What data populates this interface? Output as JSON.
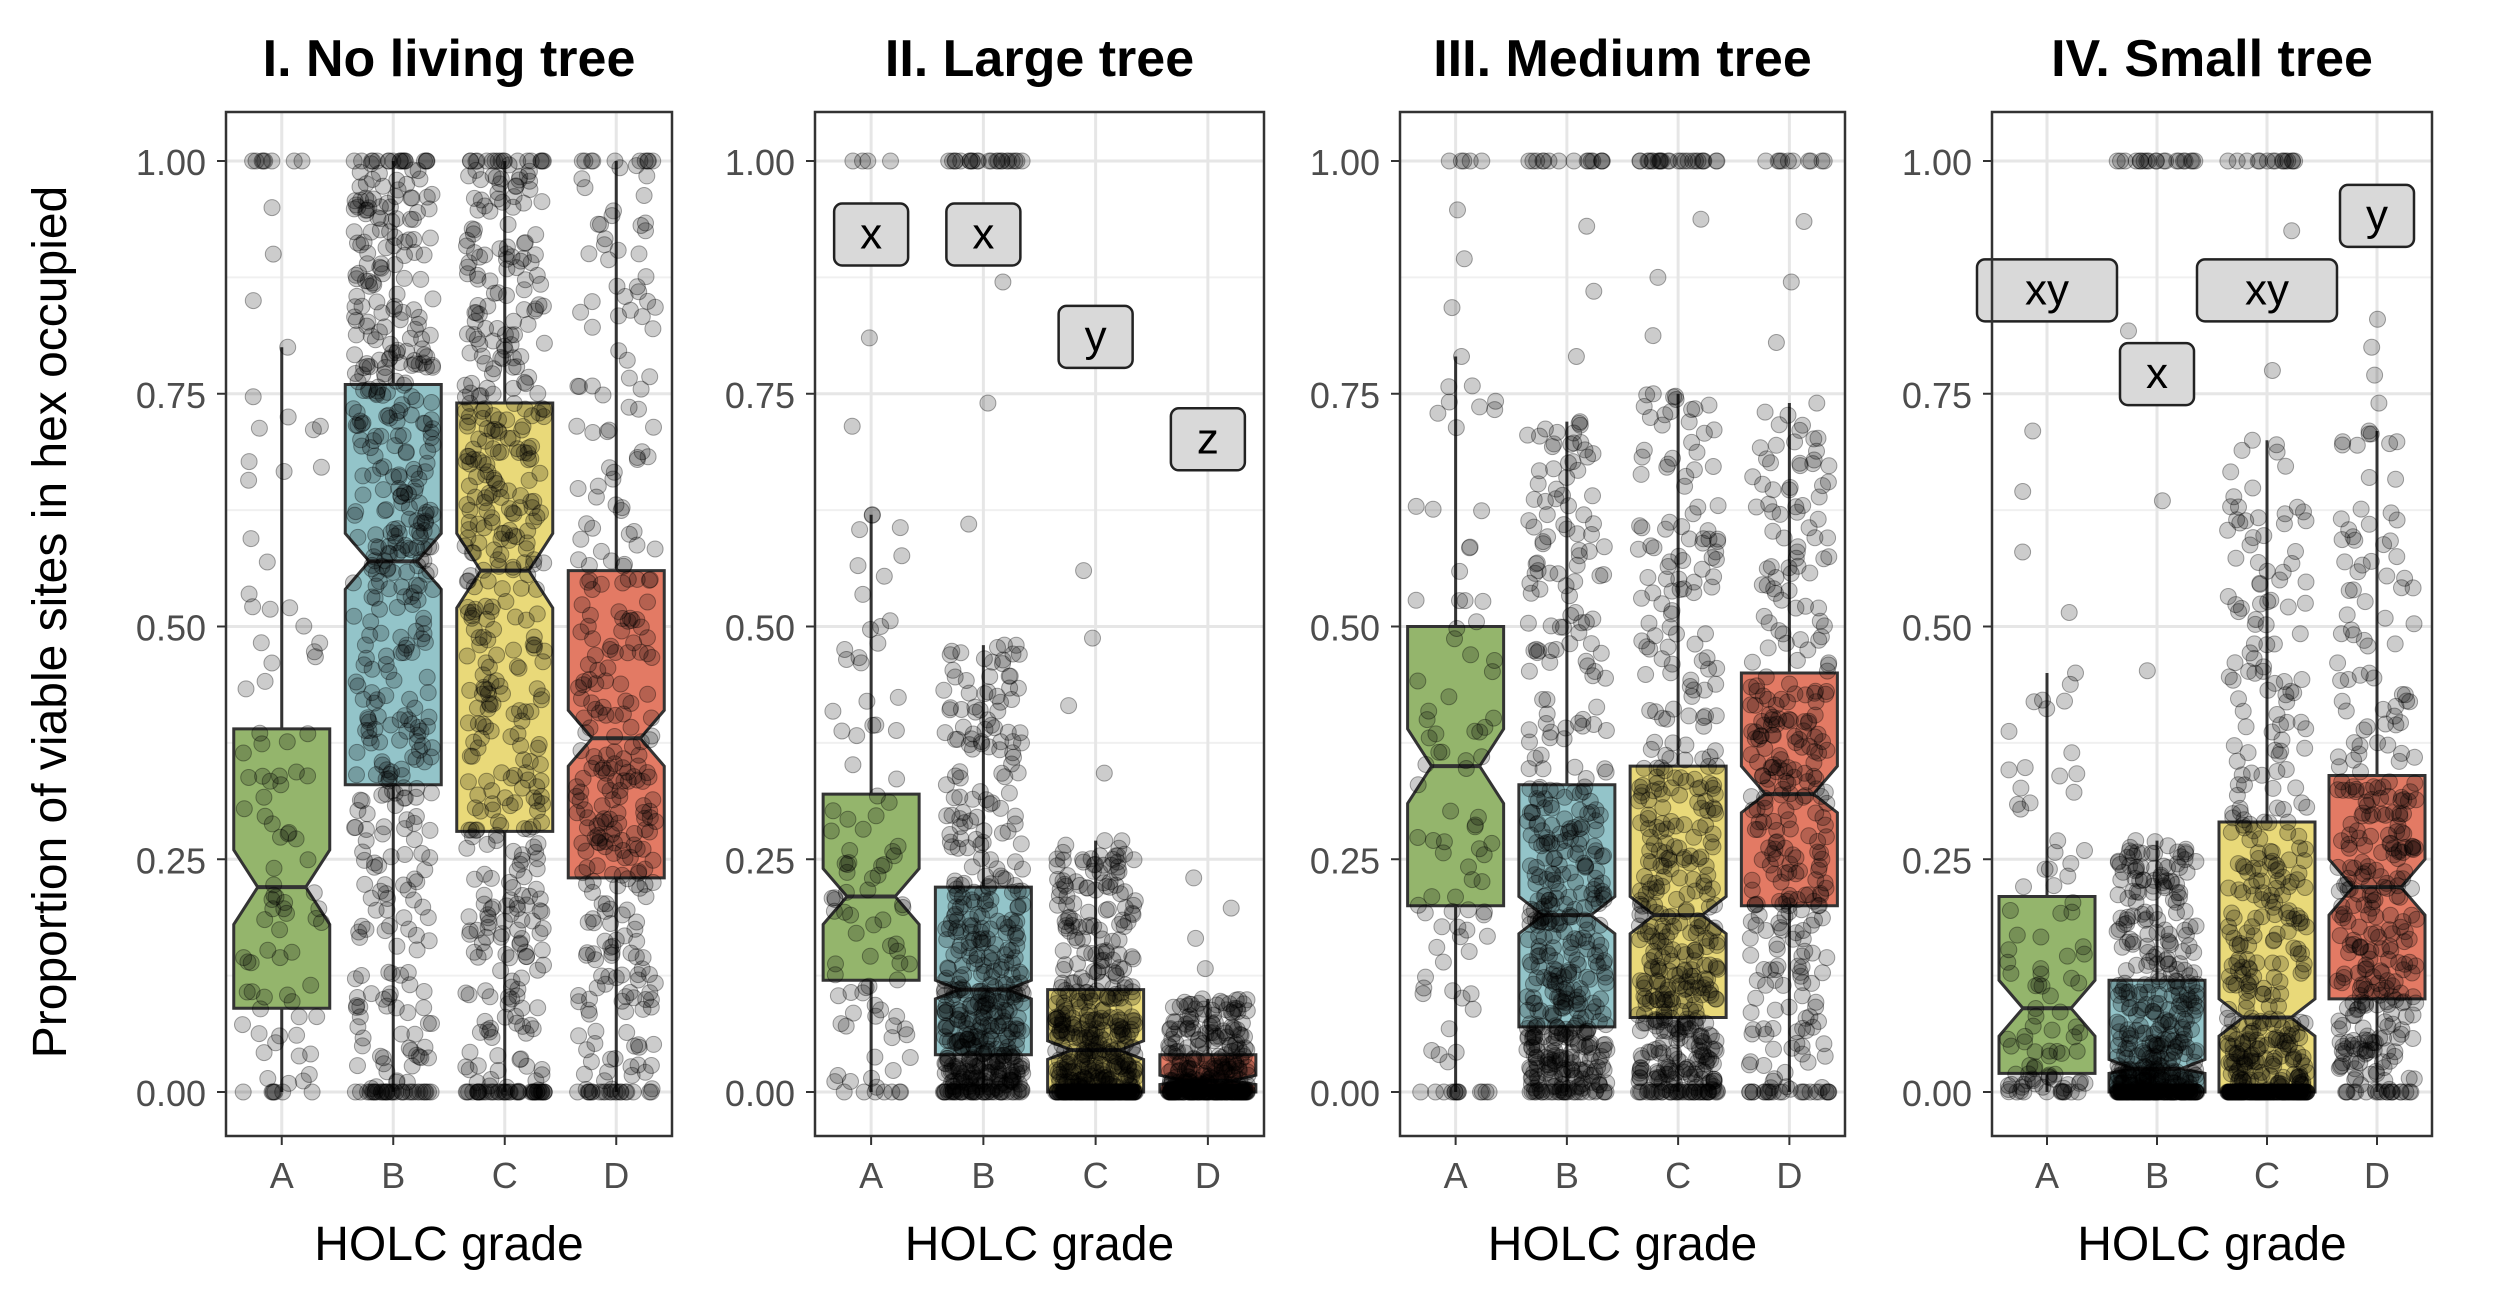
{
  "chart_data": {
    "type": "box",
    "ylabel": "Proportion of viable sites in hex occupied",
    "ylim": [
      0,
      1
    ],
    "yticks": [
      "0.00",
      "0.25",
      "0.50",
      "0.75",
      "1.00"
    ],
    "grid": true,
    "colors": {
      "A": "#94b56c",
      "B": "#93c4c9",
      "C": "#e9d979",
      "D": "#e37a64"
    },
    "panels": [
      {
        "title": "I. No living tree",
        "xlabel": "HOLC grade",
        "categories": [
          "A",
          "B",
          "C",
          "D"
        ],
        "boxes": [
          {
            "grade": "A",
            "whisker_low": 0.0,
            "q1": 0.09,
            "median": 0.22,
            "q3": 0.39,
            "whisker_high": 0.8,
            "notch_low": 0.18,
            "notch_high": 0.26,
            "max_point": 1.0
          },
          {
            "grade": "B",
            "whisker_low": 0.0,
            "q1": 0.33,
            "median": 0.57,
            "q3": 0.76,
            "whisker_high": 1.0,
            "notch_low": 0.54,
            "notch_high": 0.6,
            "max_point": 1.0
          },
          {
            "grade": "C",
            "whisker_low": 0.0,
            "q1": 0.28,
            "median": 0.56,
            "q3": 0.74,
            "whisker_high": 1.0,
            "notch_low": 0.52,
            "notch_high": 0.6,
            "max_point": 1.0
          },
          {
            "grade": "D",
            "whisker_low": 0.0,
            "q1": 0.23,
            "median": 0.38,
            "q3": 0.56,
            "whisker_high": 1.0,
            "notch_low": 0.35,
            "notch_high": 0.41,
            "max_point": 1.0
          }
        ],
        "letters": []
      },
      {
        "title": "II. Large tree",
        "xlabel": "HOLC grade",
        "categories": [
          "A",
          "B",
          "C",
          "D"
        ],
        "boxes": [
          {
            "grade": "A",
            "whisker_low": 0.0,
            "q1": 0.12,
            "median": 0.21,
            "q3": 0.32,
            "whisker_high": 0.62,
            "notch_low": 0.18,
            "notch_high": 0.24,
            "max_point": 1.0
          },
          {
            "grade": "B",
            "whisker_low": 0.0,
            "q1": 0.04,
            "median": 0.11,
            "q3": 0.22,
            "whisker_high": 0.48,
            "notch_low": 0.1,
            "notch_high": 0.12,
            "max_point": 1.0
          },
          {
            "grade": "C",
            "whisker_low": 0.0,
            "q1": 0.0,
            "median": 0.045,
            "q3": 0.11,
            "whisker_high": 0.27,
            "notch_low": 0.035,
            "notch_high": 0.055,
            "max_point": 0.56
          },
          {
            "grade": "D",
            "whisker_low": 0.0,
            "q1": 0.0,
            "median": 0.012,
            "q3": 0.04,
            "whisker_high": 0.1,
            "notch_low": 0.008,
            "notch_high": 0.018,
            "max_point": 0.23
          }
        ],
        "letters": [
          {
            "grade": "A",
            "label": "x",
            "y": 0.92
          },
          {
            "grade": "B",
            "label": "x",
            "y": 0.92
          },
          {
            "grade": "C",
            "label": "y",
            "y": 0.81
          },
          {
            "grade": "D",
            "label": "z",
            "y": 0.7
          }
        ]
      },
      {
        "title": "III. Medium tree",
        "xlabel": "HOLC grade",
        "categories": [
          "A",
          "B",
          "C",
          "D"
        ],
        "boxes": [
          {
            "grade": "A",
            "whisker_low": 0.0,
            "q1": 0.2,
            "median": 0.35,
            "q3": 0.5,
            "whisker_high": 0.79,
            "notch_low": 0.31,
            "notch_high": 0.39,
            "max_point": 1.0
          },
          {
            "grade": "B",
            "whisker_low": 0.0,
            "q1": 0.07,
            "median": 0.19,
            "q3": 0.33,
            "whisker_high": 0.72,
            "notch_low": 0.17,
            "notch_high": 0.21,
            "max_point": 1.0
          },
          {
            "grade": "C",
            "whisker_low": 0.0,
            "q1": 0.08,
            "median": 0.19,
            "q3": 0.35,
            "whisker_high": 0.75,
            "notch_low": 0.17,
            "notch_high": 0.21,
            "max_point": 1.0
          },
          {
            "grade": "D",
            "whisker_low": 0.0,
            "q1": 0.2,
            "median": 0.32,
            "q3": 0.45,
            "whisker_high": 0.74,
            "notch_low": 0.3,
            "notch_high": 0.35,
            "max_point": 1.0
          }
        ],
        "letters": []
      },
      {
        "title": "IV. Small tree",
        "xlabel": "HOLC grade",
        "categories": [
          "A",
          "B",
          "C",
          "D"
        ],
        "boxes": [
          {
            "grade": "A",
            "whisker_low": 0.0,
            "q1": 0.02,
            "median": 0.09,
            "q3": 0.21,
            "whisker_high": 0.45,
            "notch_low": 0.06,
            "notch_high": 0.12,
            "max_point": 0.71
          },
          {
            "grade": "B",
            "whisker_low": 0.0,
            "q1": 0.0,
            "median": 0.025,
            "q3": 0.12,
            "whisker_high": 0.27,
            "notch_low": 0.02,
            "notch_high": 0.035,
            "max_point": 1.0
          },
          {
            "grade": "C",
            "whisker_low": 0.0,
            "q1": 0.0,
            "median": 0.08,
            "q3": 0.29,
            "whisker_high": 0.7,
            "notch_low": 0.06,
            "notch_high": 0.1,
            "max_point": 1.0
          },
          {
            "grade": "D",
            "whisker_low": 0.0,
            "q1": 0.1,
            "median": 0.22,
            "q3": 0.34,
            "whisker_high": 0.71,
            "notch_low": 0.19,
            "notch_high": 0.25,
            "max_point": 0.83
          }
        ],
        "letters": [
          {
            "grade": "A",
            "label": "xy",
            "y": 0.86
          },
          {
            "grade": "B",
            "label": "x",
            "y": 0.77
          },
          {
            "grade": "C",
            "label": "xy",
            "y": 0.86
          },
          {
            "grade": "D",
            "label": "y",
            "y": 0.94
          }
        ]
      }
    ]
  }
}
